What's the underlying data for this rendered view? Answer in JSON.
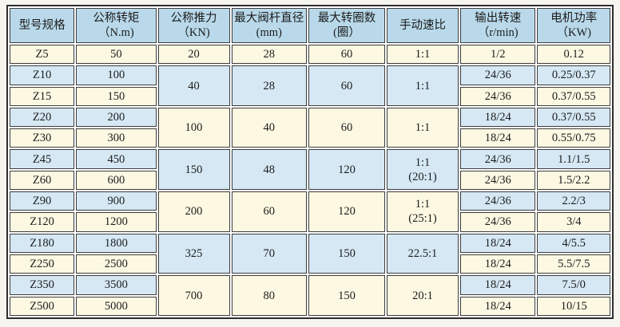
{
  "colors": {
    "header_bg": "#b9d9ea",
    "row_blue": "#d5e8f4",
    "row_cream": "#fdf8e2",
    "grid_line": "#3c3c3c",
    "outer_border": "#2e2e2e"
  },
  "table": {
    "header": [
      {
        "lines": [
          "型号规格"
        ]
      },
      {
        "lines": [
          "公称转矩",
          "（N.m)"
        ]
      },
      {
        "lines": [
          "公称推力",
          "（KN)"
        ]
      },
      {
        "lines": [
          "最大阀杆直径",
          "(mm)"
        ]
      },
      {
        "lines": [
          "最大转圈数",
          "(圈）"
        ]
      },
      {
        "lines": [
          "手动速比"
        ]
      },
      {
        "lines": [
          "输出转速",
          "（r/min)"
        ]
      },
      {
        "lines": [
          "电机功率",
          "（KW)"
        ]
      }
    ],
    "rows": [
      {
        "cells": [
          {
            "text": "Z5",
            "tone": "cream"
          },
          {
            "text": "50",
            "tone": "cream"
          },
          {
            "text": "20",
            "tone": "cream"
          },
          {
            "text": "28",
            "tone": "cream"
          },
          {
            "text": "60",
            "tone": "cream"
          },
          {
            "text": "1:1",
            "tone": "cream"
          },
          {
            "text": "1/2",
            "tone": "cream"
          },
          {
            "text": "0.12",
            "tone": "cream"
          }
        ]
      },
      {
        "cells": [
          {
            "text": "Z10",
            "tone": "blue"
          },
          {
            "text": "100",
            "tone": "blue"
          },
          {
            "text": "40",
            "tone": "blue",
            "rowspan": 2
          },
          {
            "text": "28",
            "tone": "blue",
            "rowspan": 2
          },
          {
            "text": "60",
            "tone": "blue",
            "rowspan": 2
          },
          {
            "text": "1:1",
            "tone": "blue",
            "rowspan": 2
          },
          {
            "text": "24/36",
            "tone": "blue"
          },
          {
            "text": "0.25/0.37",
            "tone": "blue"
          }
        ]
      },
      {
        "cells": [
          {
            "text": "Z15",
            "tone": "cream"
          },
          {
            "text": "150",
            "tone": "cream"
          },
          {
            "text": "24/36",
            "tone": "cream"
          },
          {
            "text": "0.37/0.55",
            "tone": "cream"
          }
        ]
      },
      {
        "cells": [
          {
            "text": "Z20",
            "tone": "blue"
          },
          {
            "text": "200",
            "tone": "blue"
          },
          {
            "text": "100",
            "tone": "cream",
            "rowspan": 2
          },
          {
            "text": "40",
            "tone": "cream",
            "rowspan": 2
          },
          {
            "text": "60",
            "tone": "cream",
            "rowspan": 2
          },
          {
            "text": "1:1",
            "tone": "cream",
            "rowspan": 2
          },
          {
            "text": "18/24",
            "tone": "blue"
          },
          {
            "text": "0.37/0.55",
            "tone": "blue"
          }
        ]
      },
      {
        "cells": [
          {
            "text": "Z30",
            "tone": "cream"
          },
          {
            "text": "300",
            "tone": "cream"
          },
          {
            "text": "18/24",
            "tone": "cream"
          },
          {
            "text": "0.55/0.75",
            "tone": "cream"
          }
        ]
      },
      {
        "cells": [
          {
            "text": "Z45",
            "tone": "blue"
          },
          {
            "text": "450",
            "tone": "blue"
          },
          {
            "text": "150",
            "tone": "blue",
            "rowspan": 2
          },
          {
            "text": "48",
            "tone": "blue",
            "rowspan": 2
          },
          {
            "text": "120",
            "tone": "blue",
            "rowspan": 2
          },
          {
            "lines": [
              "1:1",
              "(20:1)"
            ],
            "tone": "blue",
            "rowspan": 2
          },
          {
            "text": "24/36",
            "tone": "blue"
          },
          {
            "text": "1.1/1.5",
            "tone": "blue"
          }
        ]
      },
      {
        "cells": [
          {
            "text": "Z60",
            "tone": "cream"
          },
          {
            "text": "600",
            "tone": "cream"
          },
          {
            "text": "24/36",
            "tone": "cream"
          },
          {
            "text": "1.5/2.2",
            "tone": "cream"
          }
        ]
      },
      {
        "cells": [
          {
            "text": "Z90",
            "tone": "blue"
          },
          {
            "text": "900",
            "tone": "blue"
          },
          {
            "text": "200",
            "tone": "cream",
            "rowspan": 2
          },
          {
            "text": "60",
            "tone": "cream",
            "rowspan": 2
          },
          {
            "text": "120",
            "tone": "cream",
            "rowspan": 2
          },
          {
            "lines": [
              "1:1",
              "(25:1)"
            ],
            "tone": "cream",
            "rowspan": 2
          },
          {
            "text": "24/36",
            "tone": "blue"
          },
          {
            "text": "2.2/3",
            "tone": "blue"
          }
        ]
      },
      {
        "cells": [
          {
            "text": "Z120",
            "tone": "cream"
          },
          {
            "text": "1200",
            "tone": "cream"
          },
          {
            "text": "24/36",
            "tone": "cream"
          },
          {
            "text": "3/4",
            "tone": "cream"
          }
        ]
      },
      {
        "cells": [
          {
            "text": "Z180",
            "tone": "blue"
          },
          {
            "text": "1800",
            "tone": "blue"
          },
          {
            "text": "325",
            "tone": "blue",
            "rowspan": 2
          },
          {
            "text": "70",
            "tone": "blue",
            "rowspan": 2
          },
          {
            "text": "150",
            "tone": "blue",
            "rowspan": 2
          },
          {
            "text": "22.5:1",
            "tone": "blue",
            "rowspan": 2
          },
          {
            "text": "18/24",
            "tone": "blue"
          },
          {
            "text": "4/5.5",
            "tone": "blue"
          }
        ]
      },
      {
        "cells": [
          {
            "text": "Z250",
            "tone": "cream"
          },
          {
            "text": "2500",
            "tone": "cream"
          },
          {
            "text": "18/24",
            "tone": "cream"
          },
          {
            "text": "5.5/7.5",
            "tone": "cream"
          }
        ]
      },
      {
        "cells": [
          {
            "text": "Z350",
            "tone": "blue"
          },
          {
            "text": "3500",
            "tone": "blue"
          },
          {
            "text": "700",
            "tone": "cream",
            "rowspan": 2
          },
          {
            "text": "80",
            "tone": "cream",
            "rowspan": 2
          },
          {
            "text": "150",
            "tone": "cream",
            "rowspan": 2
          },
          {
            "text": "20:1",
            "tone": "cream",
            "rowspan": 2
          },
          {
            "text": "18/24",
            "tone": "blue"
          },
          {
            "text": "7.5/0",
            "tone": "blue"
          }
        ]
      },
      {
        "cells": [
          {
            "text": "Z500",
            "tone": "cream"
          },
          {
            "text": "5000",
            "tone": "cream"
          },
          {
            "text": "18/24",
            "tone": "cream"
          },
          {
            "text": "10/15",
            "tone": "cream"
          }
        ]
      }
    ]
  }
}
